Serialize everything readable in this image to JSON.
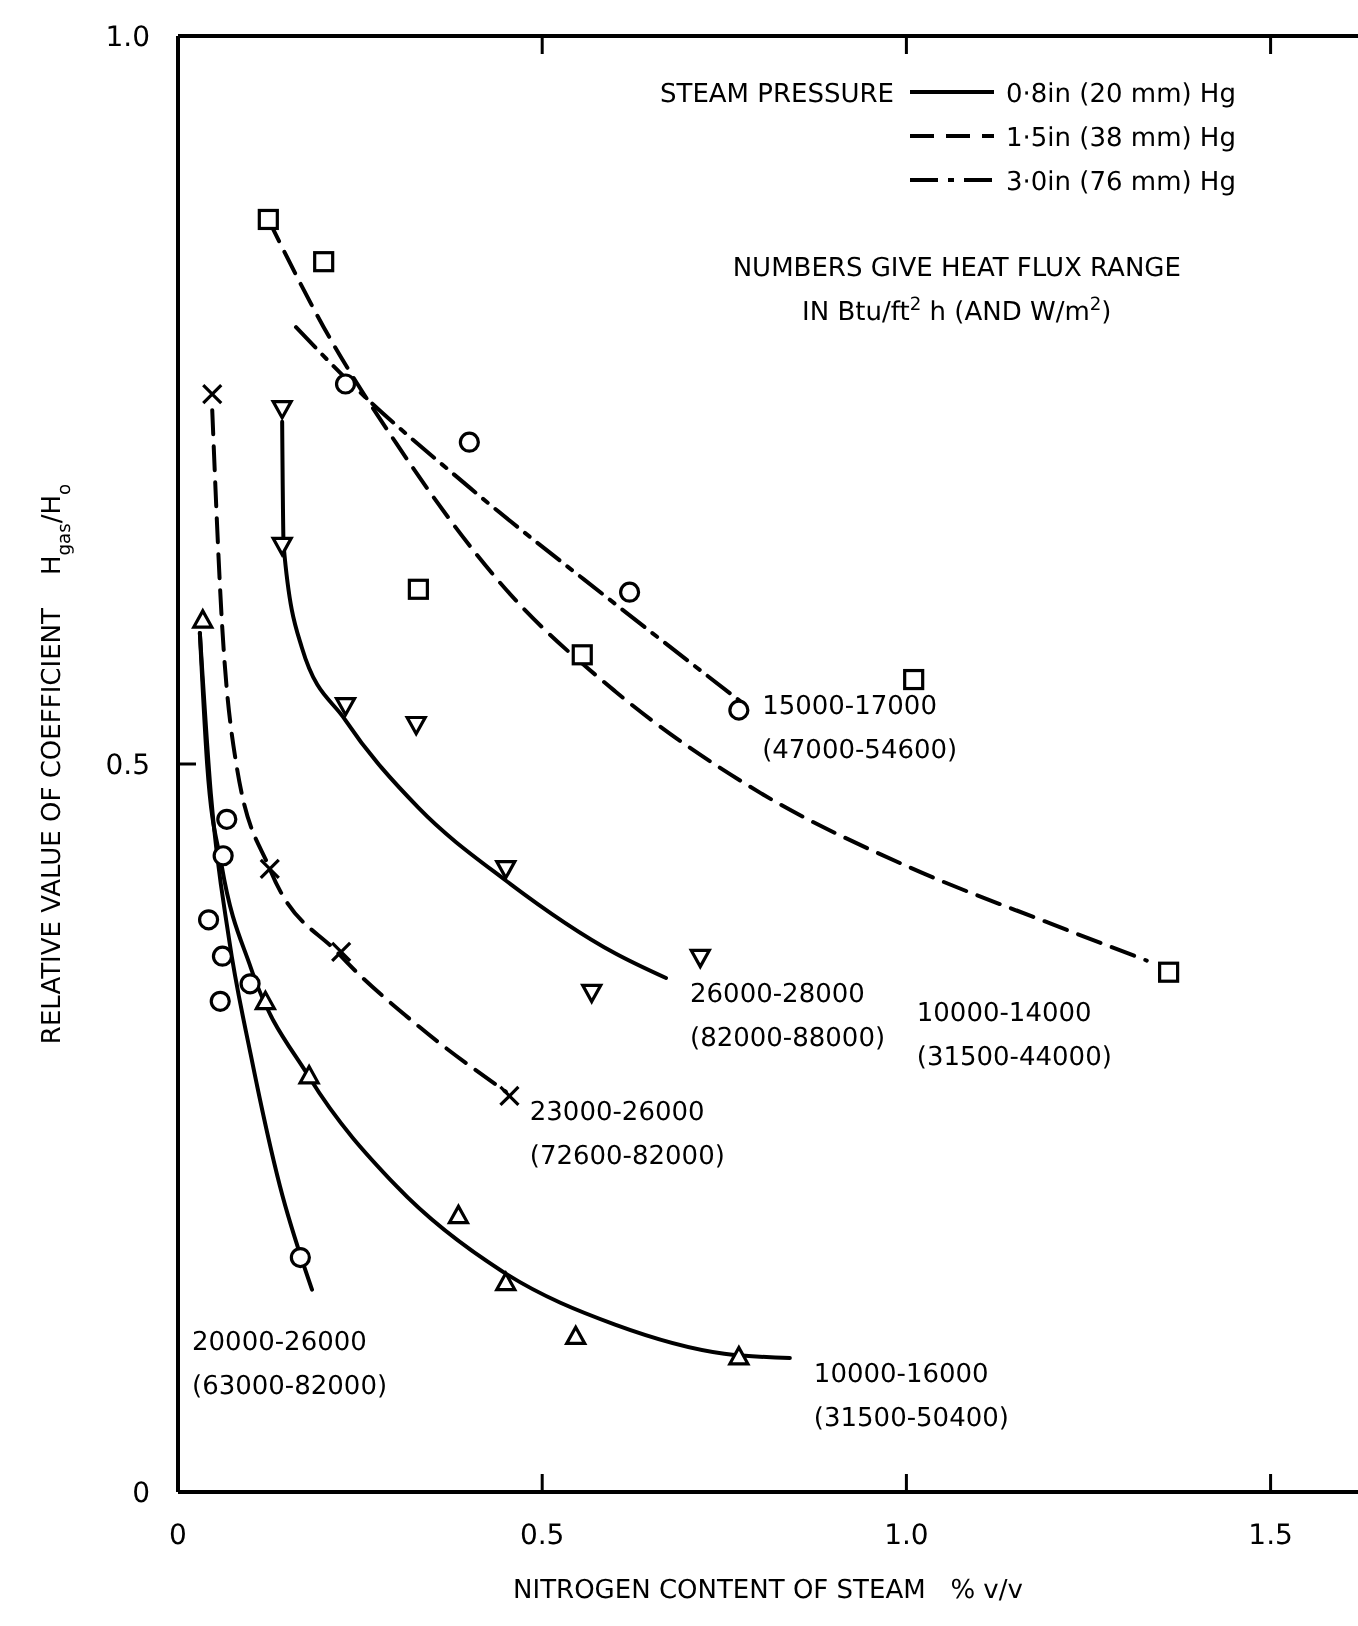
{
  "chart_data": {
    "type": "scatter",
    "xlabel": "NITROGEN CONTENT OF STEAM   % v/v",
    "ylabel": "RELATIVE VALUE OF COEFFICIENT    H$_{gas}$/H$_{o}$",
    "legend_title": "STEAM PRESSURE",
    "legend": "top right",
    "grid": false,
    "xlim": [
      0,
      1.62
    ],
    "ylim": [
      0,
      1.0
    ],
    "xticks": [
      0,
      0.5,
      {
        "value": 1.0,
        "label": "1.0"
      },
      1.5
    ],
    "yticks": [
      0,
      0.5,
      {
        "value": 1.0,
        "label": "1.0"
      }
    ],
    "series": [
      {
        "type": "line",
        "name": "0·8in (20 mm) Hg",
        "line_style": "solid",
        "marker": "none",
        "color": "#000000",
        "x": [
          0.03,
          0.04,
          0.06,
          0.1,
          0.18,
          0.3,
          0.45,
          0.6,
          0.75,
          0.84
        ],
        "values": [
          0.59,
          0.5,
          0.43,
          0.36,
          0.285,
          0.21,
          0.15,
          0.115,
          0.095,
          0.092
        ]
      },
      {
        "type": "line",
        "line_style": "solid",
        "marker": "none",
        "color": "#000000",
        "x": [
          0.03,
          0.045,
          0.07,
          0.1,
          0.14,
          0.184
        ],
        "values": [
          0.59,
          0.48,
          0.38,
          0.3,
          0.21,
          0.139
        ]
      },
      {
        "type": "line",
        "line_style": "solid",
        "marker": "none",
        "color": "#000000",
        "x": [
          0.143,
          0.145,
          0.17,
          0.23,
          0.33,
          0.45,
          0.6,
          0.67
        ],
        "values": [
          0.735,
          0.65,
          0.58,
          0.53,
          0.47,
          0.42,
          0.37,
          0.353
        ]
      },
      {
        "type": "line",
        "name": "1·5in (38 mm) Hg",
        "line_style": "dashed",
        "marker": "none",
        "color": "#000000",
        "x": [
          0.047,
          0.06,
          0.08,
          0.126,
          0.22,
          0.33,
          0.45
        ],
        "values": [
          0.743,
          0.6,
          0.5,
          0.428,
          0.37,
          0.32,
          0.275
        ]
      },
      {
        "type": "line",
        "line_style": "dashed",
        "marker": "none",
        "color": "#000000",
        "x": [
          0.124,
          0.2,
          0.3,
          0.45,
          0.6,
          0.8,
          1.0,
          1.2,
          1.33
        ],
        "values": [
          0.874,
          0.8,
          0.72,
          0.62,
          0.55,
          0.48,
          0.43,
          0.39,
          0.365
        ]
      },
      {
        "type": "line",
        "name": "3·0in (76 mm) Hg",
        "line_style": "dashdot",
        "marker": "none",
        "color": "#000000",
        "x": [
          0.162,
          0.23,
          0.4,
          0.6,
          0.78
        ],
        "values": [
          0.8,
          0.765,
          0.69,
          0.61,
          0.54
        ]
      },
      {
        "marker": "triangle",
        "color": "#000000",
        "x": [
          0.034,
          0.12,
          0.18,
          0.385,
          0.45,
          0.546,
          0.77
        ],
        "values": [
          0.599,
          0.337,
          0.286,
          0.19,
          0.144,
          0.107,
          0.093
        ]
      },
      {
        "marker": "circle",
        "color": "#000000",
        "x": [
          0.067,
          0.062,
          0.042,
          0.061,
          0.099,
          0.058,
          0.168
        ],
        "values": [
          0.462,
          0.437,
          0.393,
          0.368,
          0.349,
          0.337,
          0.161
        ]
      },
      {
        "marker": "triangle-down",
        "color": "#000000",
        "x": [
          0.143,
          0.143,
          0.23,
          0.327,
          0.45,
          0.717,
          0.568
        ],
        "values": [
          0.744,
          0.65,
          0.54,
          0.527,
          0.428,
          0.367,
          0.343
        ]
      },
      {
        "marker": "cross",
        "color": "#000000",
        "x": [
          0.047,
          0.126,
          0.224,
          0.455
        ],
        "values": [
          0.754,
          0.428,
          0.371,
          0.272
        ]
      },
      {
        "marker": "square",
        "color": "#000000",
        "x": [
          0.124,
          0.2,
          0.33,
          0.555,
          1.01,
          1.36
        ],
        "values": [
          0.874,
          0.845,
          0.62,
          0.575,
          0.558,
          0.357
        ]
      },
      {
        "marker": "circle",
        "color": "#000000",
        "x": [
          0.23,
          0.4,
          0.62,
          0.77
        ],
        "values": [
          0.761,
          0.721,
          0.618,
          0.537
        ]
      }
    ],
    "annotations": [
      "NUMBERS GIVE HEAT FLUX RANGE\nIN Btu/ft$^{2}$ h (AND W/m$^{2}$)",
      "10000-16000\n(31500-50400)",
      "20000-26000\n(63000-82000)",
      "26000-28000\n(82000-88000)",
      "23000-26000\n(72600-82000)",
      "10000-14000\n(31500-44000)",
      "15000-17000\n(47000-54600)"
    ]
  }
}
